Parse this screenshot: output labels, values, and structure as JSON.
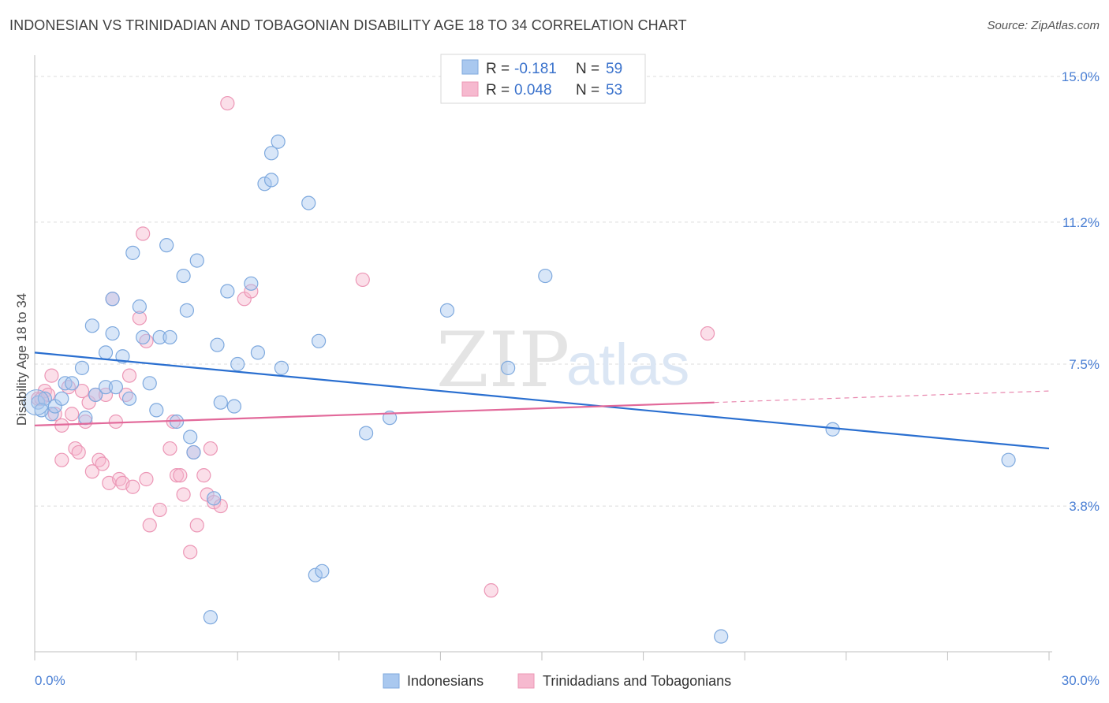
{
  "title": "INDONESIAN VS TRINIDADIAN AND TOBAGONIAN DISABILITY AGE 18 TO 34 CORRELATION CHART",
  "source": "Source: ZipAtlas.com",
  "watermark": {
    "zip": "ZIP",
    "atlas": "atlas"
  },
  "legend": {
    "rows": [
      {
        "r_label": "R =",
        "r_value": "-0.181",
        "n_label": "N =",
        "n_value": "59"
      },
      {
        "r_label": "R =",
        "r_value": "0.048",
        "n_label": "N =",
        "n_value": "53"
      }
    ]
  },
  "bottom_legend": [
    "Indonesians",
    "Trinidadians and Tobagonians"
  ],
  "colors": {
    "blue_fill": "#a9c8ef",
    "blue_stroke": "#7ea9de",
    "blue_line": "#2a6fd0",
    "pink_fill": "#f6b9cf",
    "pink_stroke": "#ec97b6",
    "pink_line": "#e2699a",
    "accent_text": "#4a7fd4"
  },
  "chart_data": {
    "type": "scatter",
    "title": "INDONESIAN VS TRINIDADIAN AND TOBAGONIAN DISABILITY AGE 18 TO 34 CORRELATION CHART",
    "xlabel": "",
    "ylabel": "Disability Age 18 to 34",
    "xlim": [
      0,
      30
    ],
    "ylim": [
      0,
      15.5
    ],
    "x_tick_labels": [
      "0.0%",
      "30.0%"
    ],
    "y_ticks": [
      3.8,
      7.5,
      11.2,
      15.0
    ],
    "y_tick_labels": [
      "3.8%",
      "7.5%",
      "11.2%",
      "15.0%"
    ],
    "grid": true,
    "legend_position": "top-center",
    "series": [
      {
        "name": "Indonesians",
        "r": -0.181,
        "n": 59,
        "trend": {
          "x": [
            0,
            30
          ],
          "y": [
            7.8,
            5.3
          ]
        },
        "points": [
          [
            0.1,
            6.5
          ],
          [
            0.3,
            6.6
          ],
          [
            0.5,
            6.2
          ],
          [
            0.6,
            6.4
          ],
          [
            0.8,
            6.6
          ],
          [
            0.9,
            7.0
          ],
          [
            1.1,
            7.0
          ],
          [
            1.4,
            7.4
          ],
          [
            1.5,
            6.1
          ],
          [
            1.8,
            6.7
          ],
          [
            1.7,
            8.5
          ],
          [
            2.1,
            6.9
          ],
          [
            2.1,
            7.8
          ],
          [
            2.3,
            8.3
          ],
          [
            2.3,
            9.2
          ],
          [
            2.4,
            6.9
          ],
          [
            2.6,
            7.7
          ],
          [
            2.8,
            6.6
          ],
          [
            2.9,
            10.4
          ],
          [
            3.1,
            9.0
          ],
          [
            3.2,
            8.2
          ],
          [
            3.4,
            7.0
          ],
          [
            3.6,
            6.3
          ],
          [
            3.7,
            8.2
          ],
          [
            3.9,
            10.6
          ],
          [
            4.0,
            8.2
          ],
          [
            4.2,
            6.0
          ],
          [
            4.4,
            9.8
          ],
          [
            4.5,
            8.9
          ],
          [
            4.6,
            5.6
          ],
          [
            4.7,
            5.2
          ],
          [
            4.8,
            10.2
          ],
          [
            5.2,
            0.9
          ],
          [
            5.3,
            4.0
          ],
          [
            5.4,
            8.0
          ],
          [
            5.5,
            6.5
          ],
          [
            5.7,
            9.4
          ],
          [
            5.9,
            6.4
          ],
          [
            6.0,
            7.5
          ],
          [
            6.4,
            9.6
          ],
          [
            6.6,
            7.8
          ],
          [
            6.8,
            12.2
          ],
          [
            7.0,
            12.3
          ],
          [
            7.3,
            7.4
          ],
          [
            7.2,
            13.3
          ],
          [
            7.0,
            13.0
          ],
          [
            8.1,
            11.7
          ],
          [
            8.3,
            2.0
          ],
          [
            8.5,
            2.1
          ],
          [
            8.4,
            8.1
          ],
          [
            9.8,
            5.7
          ],
          [
            10.5,
            6.1
          ],
          [
            12.2,
            8.9
          ],
          [
            14.0,
            7.4
          ],
          [
            15.1,
            9.8
          ],
          [
            20.3,
            0.4
          ],
          [
            23.6,
            5.8
          ],
          [
            28.8,
            5.0
          ],
          [
            0.2,
            6.3
          ]
        ]
      },
      {
        "name": "Trinidadians and Tobagonians",
        "r": 0.048,
        "n": 53,
        "trend": {
          "x": [
            0,
            20.1
          ],
          "y": [
            5.9,
            6.5
          ]
        },
        "trend_dashed": {
          "x": [
            20.1,
            30
          ],
          "y": [
            6.5,
            6.8
          ]
        },
        "points": [
          [
            0.1,
            6.6
          ],
          [
            0.2,
            6.6
          ],
          [
            0.3,
            6.8
          ],
          [
            0.4,
            6.7
          ],
          [
            0.5,
            7.2
          ],
          [
            0.6,
            6.2
          ],
          [
            0.8,
            5.9
          ],
          [
            0.8,
            5.0
          ],
          [
            1.0,
            6.9
          ],
          [
            1.1,
            6.2
          ],
          [
            1.2,
            5.3
          ],
          [
            1.3,
            5.2
          ],
          [
            1.4,
            6.8
          ],
          [
            1.5,
            6.0
          ],
          [
            1.6,
            6.5
          ],
          [
            1.7,
            4.7
          ],
          [
            1.8,
            6.7
          ],
          [
            1.9,
            5.0
          ],
          [
            2.0,
            4.9
          ],
          [
            2.1,
            6.7
          ],
          [
            2.2,
            4.4
          ],
          [
            2.3,
            9.2
          ],
          [
            2.4,
            6.0
          ],
          [
            2.5,
            4.5
          ],
          [
            2.6,
            4.4
          ],
          [
            2.7,
            6.7
          ],
          [
            2.8,
            7.2
          ],
          [
            2.9,
            4.3
          ],
          [
            3.1,
            8.7
          ],
          [
            3.2,
            10.9
          ],
          [
            3.3,
            4.5
          ],
          [
            3.3,
            8.1
          ],
          [
            3.4,
            3.3
          ],
          [
            3.7,
            3.7
          ],
          [
            4.0,
            5.3
          ],
          [
            4.1,
            6.0
          ],
          [
            4.2,
            4.6
          ],
          [
            4.3,
            4.6
          ],
          [
            4.4,
            4.1
          ],
          [
            4.6,
            2.6
          ],
          [
            4.7,
            5.2
          ],
          [
            4.8,
            3.3
          ],
          [
            5.0,
            4.6
          ],
          [
            5.1,
            4.1
          ],
          [
            5.2,
            5.3
          ],
          [
            5.3,
            3.9
          ],
          [
            5.5,
            3.8
          ],
          [
            5.7,
            14.3
          ],
          [
            6.2,
            9.2
          ],
          [
            6.4,
            9.4
          ],
          [
            9.7,
            9.7
          ],
          [
            13.5,
            1.6
          ],
          [
            19.9,
            8.3
          ]
        ]
      }
    ]
  }
}
